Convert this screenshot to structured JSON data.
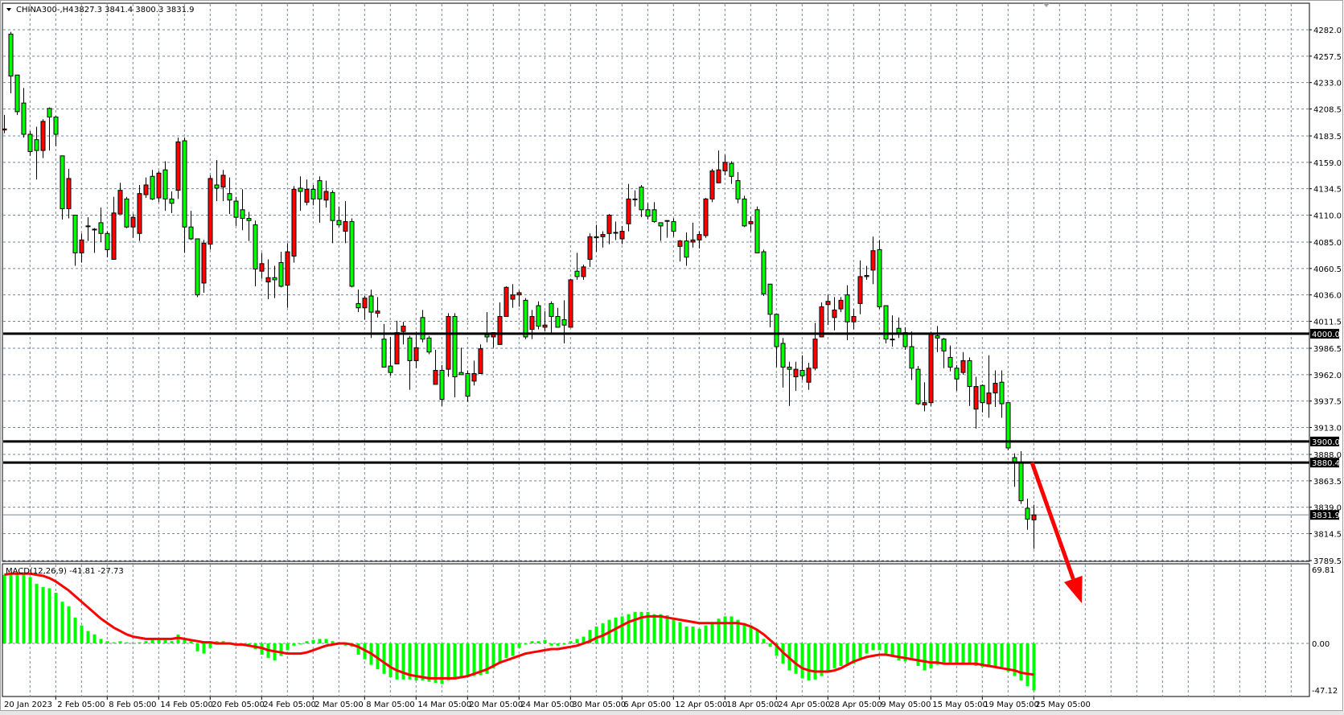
{
  "header": {
    "symbol": "CHINA300-,H4",
    "ohlc": "3827.3 3841.4 3800.3 3831.9",
    "menu_icon": "triangle-down-icon"
  },
  "macd_label": "MACD(12,26,9) -41.81 -27.73",
  "colors": {
    "bull_candle": "#ff0000",
    "bear_candle": "#00ff00",
    "histogram": "#00ff00",
    "signal_line": "#ff0000",
    "grid": "#778899",
    "level_line": "#000000",
    "annotation_arrow": "#ff0000"
  },
  "price_axis": {
    "ticks": [
      "4282.0",
      "4257.5",
      "4233.0",
      "4208.5",
      "4183.5",
      "4159.0",
      "4134.5",
      "4110.0",
      "4085.0",
      "4060.5",
      "4036.0",
      "4011.5",
      "3986.5",
      "3962.0",
      "3937.5",
      "3913.0",
      "3888.0",
      "3863.5",
      "3839.0",
      "3814.5",
      "3789.5"
    ],
    "tags": [
      "4000.0",
      "3900.0",
      "3880.4",
      "3831.9"
    ]
  },
  "macd_axis": {
    "ticks": [
      "69.81",
      "0.00",
      "-47.12"
    ]
  },
  "time_axis": {
    "labels": [
      "20 Jan 2023",
      "2 Feb 05:00",
      "8 Feb 05:00",
      "14 Feb 05:00",
      "20 Feb 05:00",
      "24 Feb 05:00",
      "2 Mar 05:00",
      "8 Mar 05:00",
      "14 Mar 05:00",
      "20 Mar 05:00",
      "24 Mar 05:00",
      "30 Mar 05:00",
      "6 Apr 05:00",
      "12 Apr 05:00",
      "18 Apr 05:00",
      "24 Apr 05:00",
      "28 Apr 05:00",
      "9 May 05:00",
      "15 May 05:00",
      "19 May 05:00",
      "25 May 05:00"
    ]
  },
  "chart_data": [
    {
      "type": "candlestick",
      "title": "CHINA300-,H4",
      "ylim": [
        3789.5,
        4282.0
      ],
      "grid": true,
      "horizontal_lines": [
        4000.0,
        3900.0,
        3880.4
      ],
      "current_price": 3831.9,
      "annotation": "red arrow pointing down from the last candle",
      "ohlc": [
        [
          4189,
          4203,
          4186,
          4190
        ],
        [
          4278,
          4280,
          4223,
          4239
        ],
        [
          4240,
          4240,
          4203,
          4206
        ],
        [
          4214,
          4228,
          4182,
          4185
        ],
        [
          4185,
          4188,
          4165,
          4169
        ],
        [
          4180,
          4192,
          4143,
          4170
        ],
        [
          4170,
          4199,
          4163,
          4197
        ],
        [
          4209,
          4210,
          4170,
          4201
        ],
        [
          4201,
          4202,
          4174,
          4185
        ],
        [
          4165,
          4165,
          4106,
          4116
        ],
        [
          4116,
          4153,
          4107,
          4144
        ],
        [
          4110,
          4110,
          4063,
          4075
        ],
        [
          4075,
          4093,
          4066,
          4087
        ],
        [
          4100,
          4108,
          4086,
          4100
        ],
        [
          4097,
          4098,
          4075,
          4097
        ],
        [
          4103,
          4117,
          4085,
          4093
        ],
        [
          4093,
          4095,
          4071,
          4078
        ],
        [
          4069,
          4127,
          4069,
          4112
        ],
        [
          4111,
          4140,
          4111,
          4133
        ],
        [
          4125,
          4127,
          4098,
          4099
        ],
        [
          4099,
          4111,
          4089,
          4108
        ],
        [
          4093,
          4138,
          4086,
          4130
        ],
        [
          4129,
          4145,
          4126,
          4138
        ],
        [
          4146,
          4152,
          4124,
          4125
        ],
        [
          4126,
          4151,
          4122,
          4149
        ],
        [
          4152,
          4160,
          4114,
          4125
        ],
        [
          4125,
          4132,
          4112,
          4121
        ],
        [
          4133,
          4182,
          4125,
          4178
        ],
        [
          4179,
          4182,
          4075,
          4099
        ],
        [
          4099,
          4114,
          4087,
          4088
        ],
        [
          4088,
          4088,
          4034,
          4036
        ],
        [
          4047,
          4087,
          4038,
          4084
        ],
        [
          4083,
          4147,
          4078,
          4144
        ],
        [
          4138,
          4161,
          4123,
          4135
        ],
        [
          4136,
          4152,
          4123,
          4147
        ],
        [
          4130,
          4145,
          4111,
          4124
        ],
        [
          4123,
          4127,
          4100,
          4108
        ],
        [
          4115,
          4134,
          4096,
          4107
        ],
        [
          4107,
          4113,
          4086,
          4105
        ],
        [
          4101,
          4105,
          4044,
          4060
        ],
        [
          4058,
          4075,
          4051,
          4065
        ],
        [
          4048,
          4069,
          4032,
          4052
        ],
        [
          4052,
          4063,
          4033,
          4050
        ],
        [
          4066,
          4076,
          4043,
          4044
        ],
        [
          4045,
          4084,
          4024,
          4076
        ],
        [
          4072,
          4137,
          4066,
          4134
        ],
        [
          4135,
          4146,
          4114,
          4132
        ],
        [
          4122,
          4143,
          4119,
          4134
        ],
        [
          4134,
          4138,
          4119,
          4125
        ],
        [
          4142,
          4146,
          4103,
          4125
        ],
        [
          4124,
          4142,
          4117,
          4132
        ],
        [
          4131,
          4133,
          4084,
          4105
        ],
        [
          4105,
          4118,
          4099,
          4101
        ],
        [
          4095,
          4123,
          4084,
          4104
        ],
        [
          4104,
          4107,
          4043,
          4044
        ],
        [
          4028,
          4041,
          4020,
          4024
        ],
        [
          4024,
          4035,
          4013,
          4033
        ],
        [
          4035,
          4041,
          3996,
          4020
        ],
        [
          4019,
          4034,
          4015,
          4021
        ],
        [
          3995,
          4009,
          3969,
          3969
        ],
        [
          3970,
          3997,
          3961,
          3964
        ],
        [
          3972,
          4012,
          3972,
          4001
        ],
        [
          4002,
          4011,
          3990,
          4007
        ],
        [
          3996,
          3998,
          3948,
          3975
        ],
        [
          3975,
          4002,
          3968,
          3987
        ],
        [
          4015,
          4022,
          3992,
          3995
        ],
        [
          3996,
          3998,
          3981,
          3983
        ],
        [
          3953,
          3985,
          3953,
          3966
        ],
        [
          3966,
          3971,
          3933,
          3939
        ],
        [
          3967,
          4019,
          3960,
          4016
        ],
        [
          4016,
          4019,
          3941,
          3960
        ],
        [
          3964,
          3987,
          3962,
          3962
        ],
        [
          3963,
          3966,
          3937,
          3942
        ],
        [
          3956,
          3975,
          3952,
          3963
        ],
        [
          3963,
          3990,
          3963,
          3986
        ],
        [
          3999,
          4020,
          3992,
          3997
        ],
        [
          3997,
          4001,
          3987,
          4001
        ],
        [
          3990,
          4029,
          3990,
          4016
        ],
        [
          4016,
          4044,
          4016,
          4043
        ],
        [
          4032,
          4046,
          4024,
          4036
        ],
        [
          4036,
          4040,
          4025,
          4038
        ],
        [
          4031,
          4033,
          3995,
          3997
        ],
        [
          4004,
          4022,
          3995,
          4016
        ],
        [
          4026,
          4030,
          4004,
          4007
        ],
        [
          4006,
          4021,
          4002,
          4008
        ],
        [
          4028,
          4030,
          4001,
          4016
        ],
        [
          4016,
          4024,
          4006,
          4006
        ],
        [
          4013,
          4031,
          3991,
          4008
        ],
        [
          4006,
          4051,
          4006,
          4050
        ],
        [
          4058,
          4075,
          4050,
          4053
        ],
        [
          4053,
          4064,
          4050,
          4062
        ],
        [
          4069,
          4093,
          4062,
          4090
        ],
        [
          4090,
          4101,
          4076,
          4089
        ],
        [
          4090,
          4095,
          4080,
          4092
        ],
        [
          4093,
          4111,
          4083,
          4110
        ],
        [
          4094,
          4104,
          4087,
          4094
        ],
        [
          4088,
          4100,
          4083,
          4095
        ],
        [
          4102,
          4139,
          4095,
          4125
        ],
        [
          4125,
          4133,
          4118,
          4125
        ],
        [
          4136,
          4138,
          4108,
          4115
        ],
        [
          4115,
          4121,
          4106,
          4109
        ],
        [
          4115,
          4122,
          4103,
          4104
        ],
        [
          4103,
          4103,
          4086,
          4100
        ],
        [
          4105,
          4105,
          4089,
          4105
        ],
        [
          4104,
          4107,
          4090,
          4095
        ],
        [
          4081,
          4087,
          4067,
          4086
        ],
        [
          4086,
          4094,
          4063,
          4071
        ],
        [
          4085,
          4103,
          4080,
          4087
        ],
        [
          4087,
          4095,
          4079,
          4092
        ],
        [
          4091,
          4126,
          4089,
          4125
        ],
        [
          4125,
          4153,
          4122,
          4151
        ],
        [
          4140,
          4170,
          4140,
          4152
        ],
        [
          4151,
          4166,
          4147,
          4159
        ],
        [
          4158,
          4160,
          4139,
          4146
        ],
        [
          4142,
          4150,
          4121,
          4125
        ],
        [
          4125,
          4128,
          4099,
          4100
        ],
        [
          4102,
          4109,
          4095,
          4104
        ],
        [
          4115,
          4118,
          4075,
          4075
        ],
        [
          4076,
          4078,
          4035,
          4037
        ],
        [
          4046,
          4046,
          4006,
          4018
        ],
        [
          4018,
          4018,
          3969,
          3988
        ],
        [
          3991,
          3996,
          3950,
          3969
        ],
        [
          3969,
          3974,
          3933,
          3967
        ],
        [
          3960,
          3974,
          3947,
          3967
        ],
        [
          3966,
          3980,
          3957,
          3961
        ],
        [
          3955,
          3973,
          3948,
          3968
        ],
        [
          3968,
          4010,
          3966,
          3995
        ],
        [
          3997,
          4029,
          3997,
          4025
        ],
        [
          4027,
          4036,
          4008,
          4030
        ],
        [
          4015,
          4034,
          4003,
          4022
        ],
        [
          4023,
          4034,
          4020,
          4031
        ],
        [
          4036,
          4045,
          3994,
          4011
        ],
        [
          4011,
          4023,
          4004,
          4016
        ],
        [
          4028,
          4068,
          4018,
          4053
        ],
        [
          4053,
          4063,
          4050,
          4054
        ],
        [
          4059,
          4090,
          4046,
          4077
        ],
        [
          4078,
          4087,
          4023,
          4025
        ],
        [
          4026,
          4026,
          3991,
          3995
        ],
        [
          3995,
          4017,
          3988,
          3995
        ],
        [
          4005,
          4015,
          3996,
          4001
        ],
        [
          4001,
          4006,
          3985,
          3988
        ],
        [
          3988,
          4002,
          3957,
          3968
        ],
        [
          3967,
          3970,
          3934,
          3935
        ],
        [
          3934,
          3955,
          3928,
          3936
        ],
        [
          3936,
          4002,
          3933,
          4000
        ],
        [
          3998,
          4007,
          3983,
          3996
        ],
        [
          3995,
          3996,
          3968,
          3984
        ],
        [
          3978,
          3989,
          3965,
          3969
        ],
        [
          3968,
          3971,
          3947,
          3958
        ],
        [
          3964,
          3983,
          3962,
          3975
        ],
        [
          3975,
          3978,
          3933,
          3951
        ],
        [
          3930,
          3960,
          3912,
          3951
        ],
        [
          3952,
          3953,
          3927,
          3936
        ],
        [
          3935,
          3980,
          3922,
          3945
        ],
        [
          3945,
          3966,
          3932,
          3954
        ],
        [
          3955,
          3966,
          3922,
          3935
        ],
        [
          3936,
          3936,
          3892,
          3894
        ],
        [
          3885,
          3889,
          3858,
          3881
        ],
        [
          3880,
          3891,
          3842,
          3845
        ],
        [
          3838,
          3847,
          3818,
          3828
        ],
        [
          3827.3,
          3841.4,
          3800.3,
          3831.9
        ]
      ]
    },
    {
      "type": "bar",
      "title": "MACD(12,26,9)",
      "ylim": [
        -47.12,
        69.81
      ],
      "histogram": [
        61,
        62,
        62,
        62,
        59,
        53,
        50,
        49,
        45,
        37,
        33,
        23,
        16,
        11,
        8,
        4,
        2,
        1,
        2,
        1,
        0.5,
        1,
        2,
        3,
        3,
        3,
        2,
        8,
        4,
        2,
        -7,
        -9,
        -4,
        2,
        2,
        1,
        0,
        -1,
        -3,
        -5,
        -10,
        -13,
        -15,
        -11,
        -6,
        -2,
        0,
        2,
        3,
        4,
        4,
        2,
        1,
        -2,
        -3,
        -10,
        -14,
        -19,
        -23,
        -27,
        -30,
        -32,
        -32,
        -32,
        -33,
        -33,
        -34,
        -35,
        -36,
        -33,
        -32,
        -30,
        -30,
        -29,
        -28,
        -27,
        -22,
        -17,
        -13,
        -11,
        -4,
        -1,
        2,
        2,
        3,
        -2,
        -2,
        -1,
        2,
        4,
        6,
        12,
        15,
        18,
        21,
        23,
        24,
        26,
        28,
        28,
        28,
        26,
        26,
        25,
        22,
        19,
        15,
        15,
        13,
        16,
        18,
        22,
        24,
        24,
        21,
        18,
        16,
        12,
        4,
        -3,
        -11,
        -18,
        -24,
        -27,
        -31,
        -33,
        -32,
        -29,
        -25,
        -22,
        -20,
        -20,
        -18,
        -13,
        -9,
        -6,
        -6,
        -9,
        -12,
        -15,
        -16,
        -15,
        -20,
        -24,
        -22,
        -19,
        -17,
        -17,
        -18,
        -19,
        -19,
        -20,
        -21,
        -21,
        -20,
        -21,
        -25,
        -29,
        -33,
        -38,
        -41.81
      ],
      "signal": [
        61,
        62,
        62,
        62,
        62,
        61,
        60,
        58,
        55,
        51,
        47,
        42,
        37,
        32,
        27,
        22,
        18,
        14,
        11,
        8,
        6,
        5,
        4,
        4,
        4,
        4,
        4,
        5,
        4,
        3,
        2,
        1,
        1,
        0,
        0,
        0,
        -1,
        -1,
        -2,
        -3,
        -4,
        -6,
        -7,
        -8,
        -9,
        -9,
        -9,
        -8,
        -6,
        -4,
        -2,
        -1,
        0,
        0,
        -1,
        -3,
        -6,
        -9,
        -13,
        -17,
        -21,
        -24,
        -26,
        -28,
        -29,
        -30,
        -31,
        -31,
        -31,
        -31,
        -31,
        -30,
        -29,
        -27,
        -25,
        -23,
        -20,
        -17,
        -15,
        -13,
        -11,
        -9,
        -8,
        -7,
        -6,
        -5,
        -5,
        -4,
        -3,
        -2,
        0,
        2,
        5,
        7,
        10,
        13,
        16,
        19,
        21,
        23,
        24,
        24,
        24,
        23,
        22,
        21,
        20,
        19,
        18,
        18,
        18,
        18,
        18,
        18,
        18,
        17,
        15,
        12,
        8,
        3,
        -2,
        -8,
        -13,
        -18,
        -22,
        -24,
        -25,
        -25,
        -25,
        -24,
        -22,
        -19,
        -16,
        -14,
        -12,
        -11,
        -10,
        -10,
        -11,
        -12,
        -13,
        -14,
        -15,
        -16,
        -17,
        -17,
        -18,
        -18,
        -18,
        -18,
        -18,
        -18,
        -19,
        -20,
        -21,
        -22,
        -23,
        -24,
        -26,
        -27,
        -27.73
      ]
    }
  ]
}
